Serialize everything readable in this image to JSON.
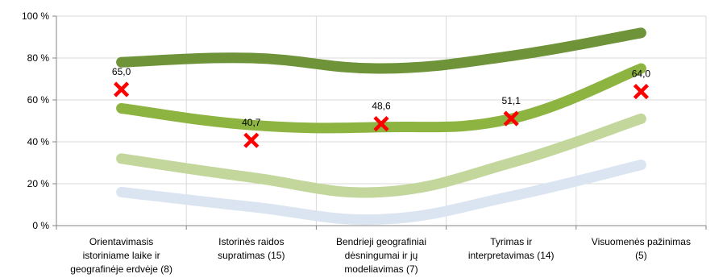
{
  "chart_data": {
    "type": "line",
    "title": "",
    "xlabel": "",
    "ylabel": "",
    "ylim": [
      0,
      100
    ],
    "yticks": [
      0,
      20,
      40,
      60,
      80,
      100
    ],
    "ytick_labels": [
      "0 %",
      "20 %",
      "40 %",
      "60 %",
      "80 %",
      "100 %"
    ],
    "categories": [
      [
        "Orientavimasis",
        "istoriniame laike ir",
        "geografinėje erdvėje (8)"
      ],
      [
        "Istorinės raidos",
        "supratimas (15)"
      ],
      [
        "Bendrieji geografiniai",
        "dėsningumai ir jų",
        "modeliavimas (7)"
      ],
      [
        "Tyrimas ir",
        "interpretavimas (14)"
      ],
      [
        "Visuomenės pažinimas",
        "(5)"
      ]
    ],
    "grid": true,
    "legend": "none",
    "series": [
      {
        "color": "#dbe5f1",
        "values": [
          16,
          9,
          3,
          14,
          29
        ]
      },
      {
        "color": "#c3d69b",
        "values": [
          32,
          23,
          16,
          30,
          51
        ]
      },
      {
        "color": "#8db341",
        "values": [
          56,
          48,
          47,
          51,
          75
        ]
      },
      {
        "color": "#6f9339",
        "values": [
          78,
          80,
          75,
          81,
          92
        ]
      }
    ],
    "markers": {
      "color": "#ff0000",
      "shape": "x",
      "values": [
        65.0,
        40.7,
        48.6,
        51.1,
        64.0
      ],
      "labels": [
        "65,0",
        "40,7",
        "48,6",
        "51,1",
        "64,0"
      ]
    }
  }
}
